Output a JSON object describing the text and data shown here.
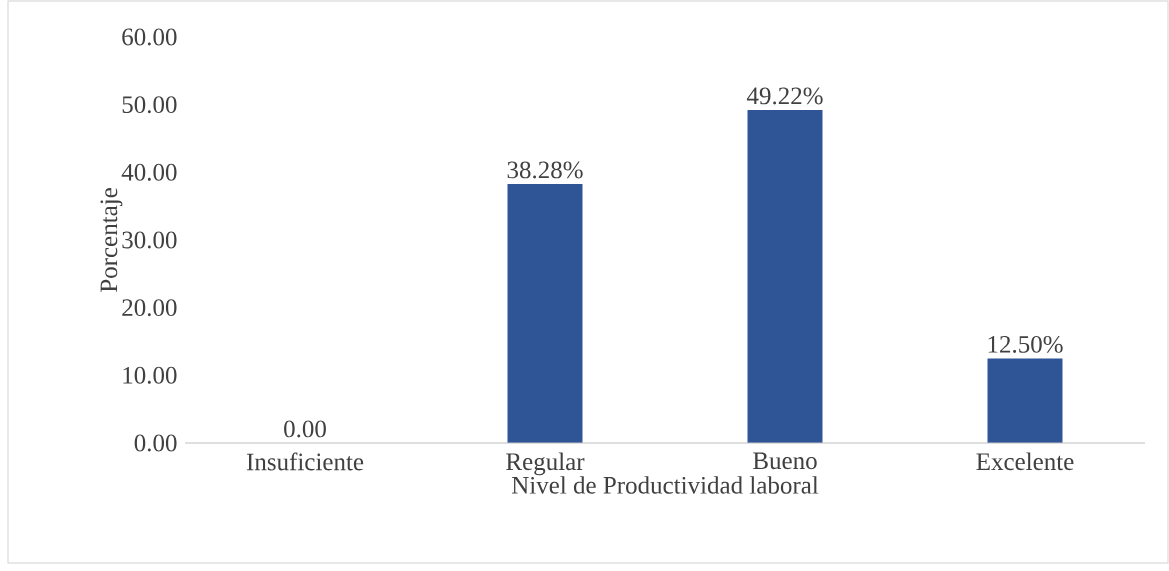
{
  "chart_data": {
    "type": "bar",
    "xlabel": "Nivel de Productividad laboral",
    "ylabel": "Porcentaje",
    "categories": [
      "Insuficiente",
      "Regular",
      "Bueno",
      "Excelente"
    ],
    "values": [
      0,
      38.28,
      49.22,
      12.5
    ],
    "value_labels": [
      "0.00",
      "38.28%",
      "49.22%",
      "12.50%"
    ],
    "color": "#2f5597",
    "ylim": [
      0,
      60
    ],
    "yticks": [
      {
        "value": 0,
        "label": "0.00"
      },
      {
        "value": 10,
        "label": "10.00"
      },
      {
        "value": 20,
        "label": "20.00"
      },
      {
        "value": 30,
        "label": "30.00"
      },
      {
        "value": 40,
        "label": "40.00"
      },
      {
        "value": 50,
        "label": "50.00"
      },
      {
        "value": 60,
        "label": "60.00"
      }
    ],
    "grid": false
  }
}
